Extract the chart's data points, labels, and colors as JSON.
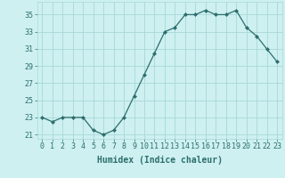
{
  "x": [
    0,
    1,
    2,
    3,
    4,
    5,
    6,
    7,
    8,
    9,
    10,
    11,
    12,
    13,
    14,
    15,
    16,
    17,
    18,
    19,
    20,
    21,
    22,
    23
  ],
  "y": [
    23.0,
    22.5,
    23.0,
    23.0,
    23.0,
    21.5,
    21.0,
    21.5,
    23.0,
    25.5,
    28.0,
    30.5,
    33.0,
    33.5,
    35.0,
    35.0,
    35.5,
    35.0,
    35.0,
    35.5,
    33.5,
    32.5,
    31.0,
    29.5
  ],
  "line_color": "#2d6e6e",
  "marker": "D",
  "marker_size": 2,
  "bg_color": "#cef0f0",
  "grid_color": "#a8d8d8",
  "xlabel": "Humidex (Indice chaleur)",
  "xlim": [
    -0.5,
    23.5
  ],
  "ylim": [
    20.5,
    36.5
  ],
  "yticks": [
    21,
    23,
    25,
    27,
    29,
    31,
    33,
    35
  ],
  "tick_color": "#2d6e6e",
  "label_fontsize": 7,
  "tick_fontsize": 6
}
